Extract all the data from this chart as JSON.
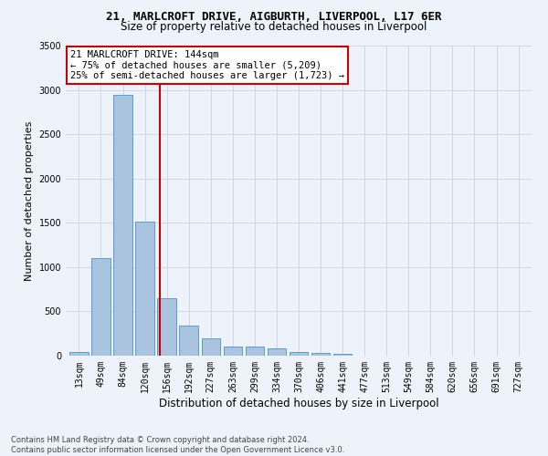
{
  "title1": "21, MARLCROFT DRIVE, AIGBURTH, LIVERPOOL, L17 6ER",
  "title2": "Size of property relative to detached houses in Liverpool",
  "xlabel": "Distribution of detached houses by size in Liverpool",
  "ylabel": "Number of detached properties",
  "categories": [
    "13sqm",
    "49sqm",
    "84sqm",
    "120sqm",
    "156sqm",
    "192sqm",
    "227sqm",
    "263sqm",
    "299sqm",
    "334sqm",
    "370sqm",
    "406sqm",
    "441sqm",
    "477sqm",
    "513sqm",
    "549sqm",
    "584sqm",
    "620sqm",
    "656sqm",
    "691sqm",
    "727sqm"
  ],
  "values": [
    45,
    1100,
    2940,
    1510,
    650,
    340,
    195,
    105,
    100,
    80,
    45,
    35,
    22,
    5,
    5,
    3,
    2,
    1,
    0,
    0,
    0
  ],
  "bar_color": "#aac4e0",
  "bar_edge_color": "#5b9bd5",
  "annotation_text1": "21 MARLCROFT DRIVE: 144sqm",
  "annotation_text2": "← 75% of detached houses are smaller (5,209)",
  "annotation_text3": "25% of semi-detached houses are larger (1,723) →",
  "annotation_box_color": "#ffffff",
  "annotation_box_edge": "#cc0000",
  "vline_color": "#cc0000",
  "grid_color": "#d0d8e8",
  "background_color": "#eef2fb",
  "footer1": "Contains HM Land Registry data © Crown copyright and database right 2024.",
  "footer2": "Contains public sector information licensed under the Open Government Licence v3.0.",
  "ylim": [
    0,
    3500
  ],
  "vline_index": 3.667,
  "title1_fontsize": 9,
  "title2_fontsize": 8.5,
  "xlabel_fontsize": 8.5,
  "ylabel_fontsize": 8,
  "tick_fontsize": 7,
  "annot_fontsize": 7.5,
  "footer_fontsize": 6
}
